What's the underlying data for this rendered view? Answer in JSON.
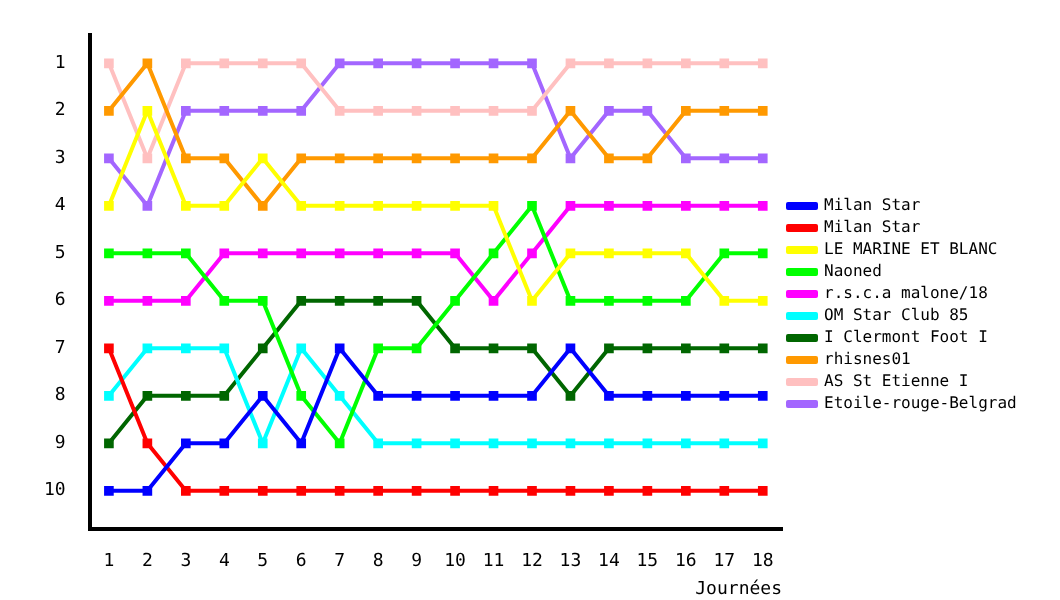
{
  "chart_data": {
    "type": "line",
    "xlabel": "Journées",
    "x": [
      1,
      2,
      3,
      4,
      5,
      6,
      7,
      8,
      9,
      10,
      11,
      12,
      13,
      14,
      15,
      16,
      17,
      18
    ],
    "xlim": [
      0.5,
      18.5
    ],
    "xticks": [
      1,
      2,
      3,
      4,
      5,
      6,
      7,
      8,
      9,
      10,
      11,
      12,
      13,
      14,
      15,
      16,
      17,
      18
    ],
    "ylim": [
      10.8,
      0.4
    ],
    "yticks": [
      1,
      2,
      3,
      4,
      5,
      6,
      7,
      8,
      9,
      10
    ],
    "grid": false,
    "legend": "right",
    "marker": "square",
    "line_style": "solid",
    "series": [
      {
        "name": "Milan Star",
        "color": "#0000ff",
        "values": [
          10,
          10,
          9,
          9,
          8,
          9,
          7,
          8,
          8,
          8,
          8,
          8,
          7,
          8,
          8,
          8,
          8,
          8
        ]
      },
      {
        "name": "Milan Star",
        "color": "#ff0000",
        "values": [
          7,
          9,
          10,
          10,
          10,
          10,
          10,
          10,
          10,
          10,
          10,
          10,
          10,
          10,
          10,
          10,
          10,
          10
        ]
      },
      {
        "name": "LE MARINE ET BLANC",
        "color": "#ffff00",
        "values": [
          4,
          2,
          4,
          4,
          3,
          4,
          4,
          4,
          4,
          4,
          4,
          6,
          5,
          5,
          5,
          5,
          6,
          6
        ]
      },
      {
        "name": "Naoned",
        "color": "#00ff00",
        "values": [
          5,
          5,
          5,
          6,
          6,
          8,
          9,
          7,
          7,
          6,
          5,
          4,
          6,
          6,
          6,
          6,
          5,
          5
        ]
      },
      {
        "name": "r.s.c.a malone/18",
        "color": "#ff00ff",
        "values": [
          6,
          6,
          6,
          5,
          5,
          5,
          5,
          5,
          5,
          5,
          6,
          5,
          4,
          4,
          4,
          4,
          4,
          4
        ]
      },
      {
        "name": "OM Star Club 85",
        "color": "#00ffff",
        "values": [
          8,
          7,
          7,
          7,
          9,
          7,
          8,
          9,
          9,
          9,
          9,
          9,
          9,
          9,
          9,
          9,
          9,
          9
        ]
      },
      {
        "name": "I Clermont Foot I",
        "color": "#006600",
        "values": [
          9,
          8,
          8,
          8,
          7,
          6,
          6,
          6,
          6,
          7,
          7,
          7,
          8,
          7,
          7,
          7,
          7,
          7
        ]
      },
      {
        "name": "rhisnes01",
        "color": "#ff9900",
        "values": [
          2,
          1,
          3,
          3,
          4,
          3,
          3,
          3,
          3,
          3,
          3,
          3,
          2,
          3,
          3,
          2,
          2,
          2
        ]
      },
      {
        "name": "AS St Etienne I",
        "color": "#ffc0c0",
        "values": [
          1,
          3,
          1,
          1,
          1,
          1,
          2,
          2,
          2,
          2,
          2,
          2,
          1,
          1,
          1,
          1,
          1,
          1
        ]
      },
      {
        "name": "Etoile-rouge-Belgrad",
        "color": "#a366ff",
        "values": [
          3,
          4,
          2,
          2,
          2,
          2,
          1,
          1,
          1,
          1,
          1,
          1,
          3,
          2,
          2,
          3,
          3,
          3
        ]
      }
    ]
  }
}
